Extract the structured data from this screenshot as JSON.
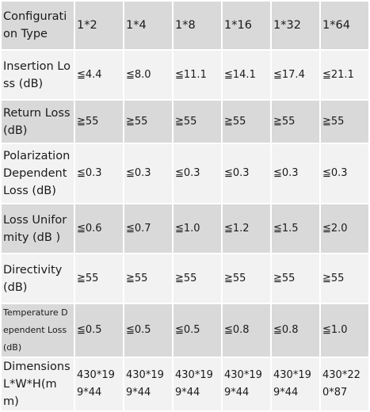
{
  "table": {
    "header": {
      "label": "Configuration Type",
      "values": [
        "1*2",
        "1*4",
        "1*8",
        "1*16",
        "1*32",
        "1*64"
      ]
    },
    "rows": [
      {
        "label": "Insertion Loss (dB)",
        "values": [
          "≦4.4",
          "≦8.0",
          "≦11.1",
          "≦14.1",
          "≦17.4",
          "≦21.1"
        ]
      },
      {
        "label": "Return Loss (dB)",
        "values": [
          "≧55",
          "≧55",
          "≧55",
          "≧55",
          "≧55",
          "≧55"
        ]
      },
      {
        "label": "Polarization Dependent Loss (dB)",
        "values": [
          "≦0.3",
          "≦0.3",
          "≦0.3",
          "≦0.3",
          "≦0.3",
          "≦0.3"
        ]
      },
      {
        "label": "Loss Uniformity (dB )",
        "values": [
          "≦0.6",
          "≦0.7",
          "≦1.0",
          "≦1.2",
          "≦1.5",
          "≦2.0"
        ]
      },
      {
        "label": "Directivity (dB)",
        "values": [
          "≧55",
          "≧55",
          "≧55",
          "≧55",
          "≧55",
          "≧55"
        ]
      },
      {
        "label": "Temperature Dependent Loss (dB)",
        "values": [
          "≦0.5",
          "≦0.5",
          "≦0.5",
          "≦0.8",
          "≦0.8",
          "≦1.0"
        ]
      },
      {
        "label": "Dimensions L*W*H(mm)",
        "values": [
          "430*199*44",
          "430*199*44",
          "430*199*44",
          "430*199*44",
          "430*199*44",
          "430*220*87"
        ]
      }
    ]
  }
}
